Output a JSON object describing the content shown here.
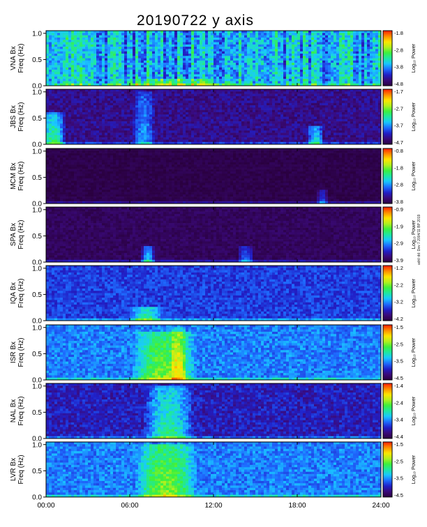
{
  "title": "20190722 y axis",
  "side_note": "adrt/ dd: Dev 7 2004/11 BP 2019",
  "colorbar_unit": "Log₁₀ Power",
  "chart_data": {
    "type": "heatmap",
    "x_ticks": [
      "00:00",
      "06:00",
      "12:00",
      "18:00",
      "24:00"
    ],
    "x_range_hours": [
      0,
      24
    ],
    "y_range_hz": [
      0,
      1.05
    ],
    "y_ticks": [
      "0.0",
      "0.5",
      "1.0"
    ],
    "colormap": [
      "#2a0040",
      "#3a0a7a",
      "#2020c8",
      "#1e6cff",
      "#19c8ff",
      "#1ee8a0",
      "#3cf03c",
      "#b4f01e",
      "#ffe600",
      "#ff8c00",
      "#ff1e00"
    ],
    "panels": [
      {
        "station": "VNA",
        "ylabel": "VNA Bx",
        "ylabel2": "Freq (Hz)",
        "cbar_ticks": [
          "-1.8",
          "-2.8",
          "-3.8",
          "-4.8"
        ],
        "base_level": 0.38,
        "noise": 0.22,
        "striped": true,
        "events": [
          {
            "t": 9.5,
            "w": 5.0,
            "amp": 0.25,
            "fmax": 0.12
          }
        ]
      },
      {
        "station": "JBS",
        "ylabel": "JBS Bx",
        "ylabel2": "Freq (Hz)",
        "cbar_ticks": [
          "-1.7",
          "-2.7",
          "-3.7",
          "-4.7"
        ],
        "base_level": 0.12,
        "noise": 0.12,
        "striped": false,
        "events": [
          {
            "t": 0.5,
            "w": 0.9,
            "amp": 0.45,
            "fmax": 0.6
          },
          {
            "t": 7.0,
            "w": 0.8,
            "amp": 0.25,
            "fmax": 1.0
          },
          {
            "t": 19.3,
            "w": 0.6,
            "amp": 0.35,
            "fmax": 0.35
          }
        ]
      },
      {
        "station": "MCM",
        "ylabel": "MCM Bx",
        "ylabel2": "Freq (Hz)",
        "cbar_ticks": [
          "-0.8",
          "-1.8",
          "-2.8",
          "-3.8"
        ],
        "base_level": 0.02,
        "noise": 0.05,
        "striped": false,
        "events": [
          {
            "t": 19.8,
            "w": 0.4,
            "amp": 0.25,
            "fmax": 0.25
          }
        ]
      },
      {
        "station": "SPA",
        "ylabel": "SPA Bx",
        "ylabel2": "Freq (Hz)",
        "cbar_ticks": [
          "-0.9",
          "-1.9",
          "-2.9",
          "-3.9"
        ],
        "base_level": 0.05,
        "noise": 0.07,
        "striped": false,
        "events": [
          {
            "t": 7.3,
            "w": 0.5,
            "amp": 0.4,
            "fmax": 0.3
          },
          {
            "t": 14.3,
            "w": 0.6,
            "amp": 0.25,
            "fmax": 0.3
          }
        ]
      },
      {
        "station": "IQA",
        "ylabel": "IQA Bx",
        "ylabel2": "Freq (Hz)",
        "cbar_ticks": [
          "-1.2",
          "-2.2",
          "-3.2",
          "-4.2"
        ],
        "base_level": 0.24,
        "noise": 0.12,
        "striped": false,
        "events": [
          {
            "t": 7.2,
            "w": 1.2,
            "amp": 0.3,
            "fmax": 0.25
          }
        ]
      },
      {
        "station": "ISR",
        "ylabel": "ISR Bx",
        "ylabel2": "Freq (Hz)",
        "cbar_ticks": [
          "-1.5",
          "-2.5",
          "-3.5",
          "-4.5"
        ],
        "base_level": 0.32,
        "noise": 0.14,
        "striped": false,
        "events": [
          {
            "t": 8.5,
            "w": 2.3,
            "amp": 0.35,
            "fmax": 0.9
          },
          {
            "t": 9.5,
            "w": 0.6,
            "amp": 0.25,
            "fmax": 1.0
          }
        ]
      },
      {
        "station": "NAL",
        "ylabel": "NAL Bx",
        "ylabel2": "Freq (Hz)",
        "cbar_ticks": [
          "-1.4",
          "-2.4",
          "-3.4",
          "-4.4"
        ],
        "base_level": 0.18,
        "noise": 0.14,
        "striped": false,
        "events": [
          {
            "t": 8.8,
            "w": 1.8,
            "amp": 0.35,
            "fmax": 1.0
          }
        ]
      },
      {
        "station": "LVR",
        "ylabel": "LVR Bx",
        "ylabel2": "Freq (Hz)",
        "cbar_ticks": [
          "-1.5",
          "-2.5",
          "-3.5",
          "-4.5"
        ],
        "base_level": 0.32,
        "noise": 0.14,
        "striped": false,
        "events": [
          {
            "t": 8.6,
            "w": 2.2,
            "amp": 0.35,
            "fmax": 1.0
          }
        ]
      }
    ]
  }
}
